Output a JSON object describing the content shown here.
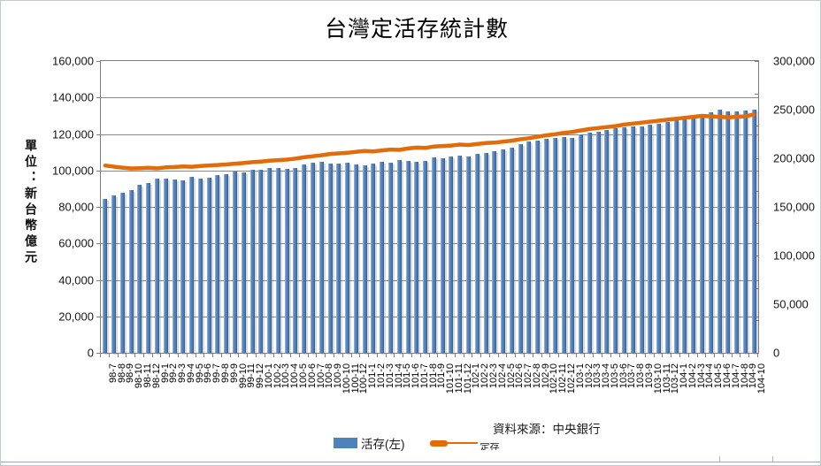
{
  "title": "台灣定活存統計數",
  "unit_label": "單位：新台幣億元",
  "source": "資料來源：中央銀行",
  "legend": {
    "bar_label": "活存(左)",
    "line_label": "定存"
  },
  "left_axis": {
    "labels": [
      "160,000",
      "140,000",
      "120,000",
      "100,000",
      "80,000",
      "60,000",
      "40,000",
      "20,000",
      "0"
    ],
    "min": 0,
    "max": 160000,
    "step": 20000
  },
  "right_axis": {
    "labels": [
      "300,000",
      "250,000",
      "200,000",
      "150,000",
      "100,000",
      "50,000",
      "0"
    ],
    "min": 0,
    "max": 300000,
    "step": 50000
  },
  "colors": {
    "bar": "#4F81BD",
    "line": "#E26B0A",
    "grid": "#898989"
  },
  "chart_data": {
    "type": "bar",
    "title": "台灣定活存統計數",
    "xlabel": "",
    "ylabel": "單位：新台幣億元",
    "ylim_left": [
      0,
      160000
    ],
    "ylim_right": [
      0,
      300000
    ],
    "grid": true,
    "legend_position": "bottom",
    "categories": [
      "98-7",
      "98-8",
      "98-9",
      "98-10",
      "98-11",
      "98-12",
      "99-1",
      "99-2",
      "99-3",
      "99-4",
      "99-5",
      "99-6",
      "99-7",
      "99-8",
      "99-9",
      "99-10",
      "99-11",
      "99-12",
      "100-1",
      "100-2",
      "100-3",
      "100-4",
      "100-5",
      "100-6",
      "100-7",
      "100-8",
      "100-9",
      "100-10",
      "100-11",
      "100-12",
      "101-1",
      "101-2",
      "101-3",
      "101-4",
      "101-5",
      "101-6",
      "101-7",
      "101-8",
      "101-9",
      "101-10",
      "101-11",
      "101-12",
      "102-1",
      "102-2",
      "102-3",
      "102-4",
      "102-5",
      "102-6",
      "102-7",
      "102-8",
      "102-9",
      "102-10",
      "102-11",
      "102-12",
      "103-1",
      "103-2",
      "103-3",
      "103-4",
      "103-5",
      "103-6",
      "103-7",
      "103-8",
      "103-9",
      "103-10",
      "103-11",
      "103-12",
      "104-1",
      "104-2",
      "104-3",
      "104-4",
      "104-5",
      "104-6",
      "104-7",
      "104-8",
      "104-9",
      "104-10"
    ],
    "series": [
      {
        "name": "活存(左)",
        "type": "bar",
        "axis": "left",
        "color": "#4F81BD",
        "values": [
          84500,
          86500,
          88000,
          89200,
          92300,
          93100,
          95400,
          95600,
          94900,
          94600,
          96300,
          95300,
          96200,
          97400,
          98100,
          99500,
          98700,
          100200,
          100500,
          101300,
          101500,
          100900,
          101400,
          103400,
          104200,
          104500,
          104000,
          103700,
          104100,
          103500,
          102900,
          103600,
          104900,
          104400,
          105500,
          105100,
          104800,
          105000,
          107100,
          106700,
          107600,
          107900,
          107700,
          108900,
          109800,
          110500,
          111300,
          112400,
          114300,
          115900,
          116500,
          117100,
          117600,
          118300,
          117900,
          119600,
          120500,
          121300,
          122400,
          123200,
          123600,
          124300,
          124100,
          125200,
          125700,
          126500,
          127300,
          128400,
          129600,
          130900,
          132100,
          133100,
          132500,
          132200,
          132700,
          133300
        ]
      },
      {
        "name": "定存",
        "type": "line",
        "axis": "right",
        "color": "#E26B0A",
        "values": [
          192500,
          191400,
          190400,
          189500,
          189800,
          190300,
          189600,
          190600,
          191000,
          191600,
          191300,
          192100,
          192600,
          193100,
          193600,
          194500,
          195100,
          196000,
          196600,
          197500,
          198100,
          198600,
          199600,
          201000,
          202100,
          203100,
          204500,
          205000,
          205600,
          206600,
          207500,
          207100,
          208100,
          209000,
          208600,
          210100,
          211000,
          210600,
          212100,
          212600,
          213100,
          214100,
          213600,
          214600,
          215600,
          216100,
          217100,
          218100,
          219500,
          220600,
          222100,
          223600,
          224600,
          226100,
          227100,
          228600,
          230100,
          231100,
          232100,
          233100,
          234600,
          235600,
          236600,
          237600,
          238600,
          239600,
          240600,
          241600,
          242600,
          243600,
          243100,
          242600,
          242100,
          242600,
          243100,
          245100
        ]
      }
    ]
  }
}
